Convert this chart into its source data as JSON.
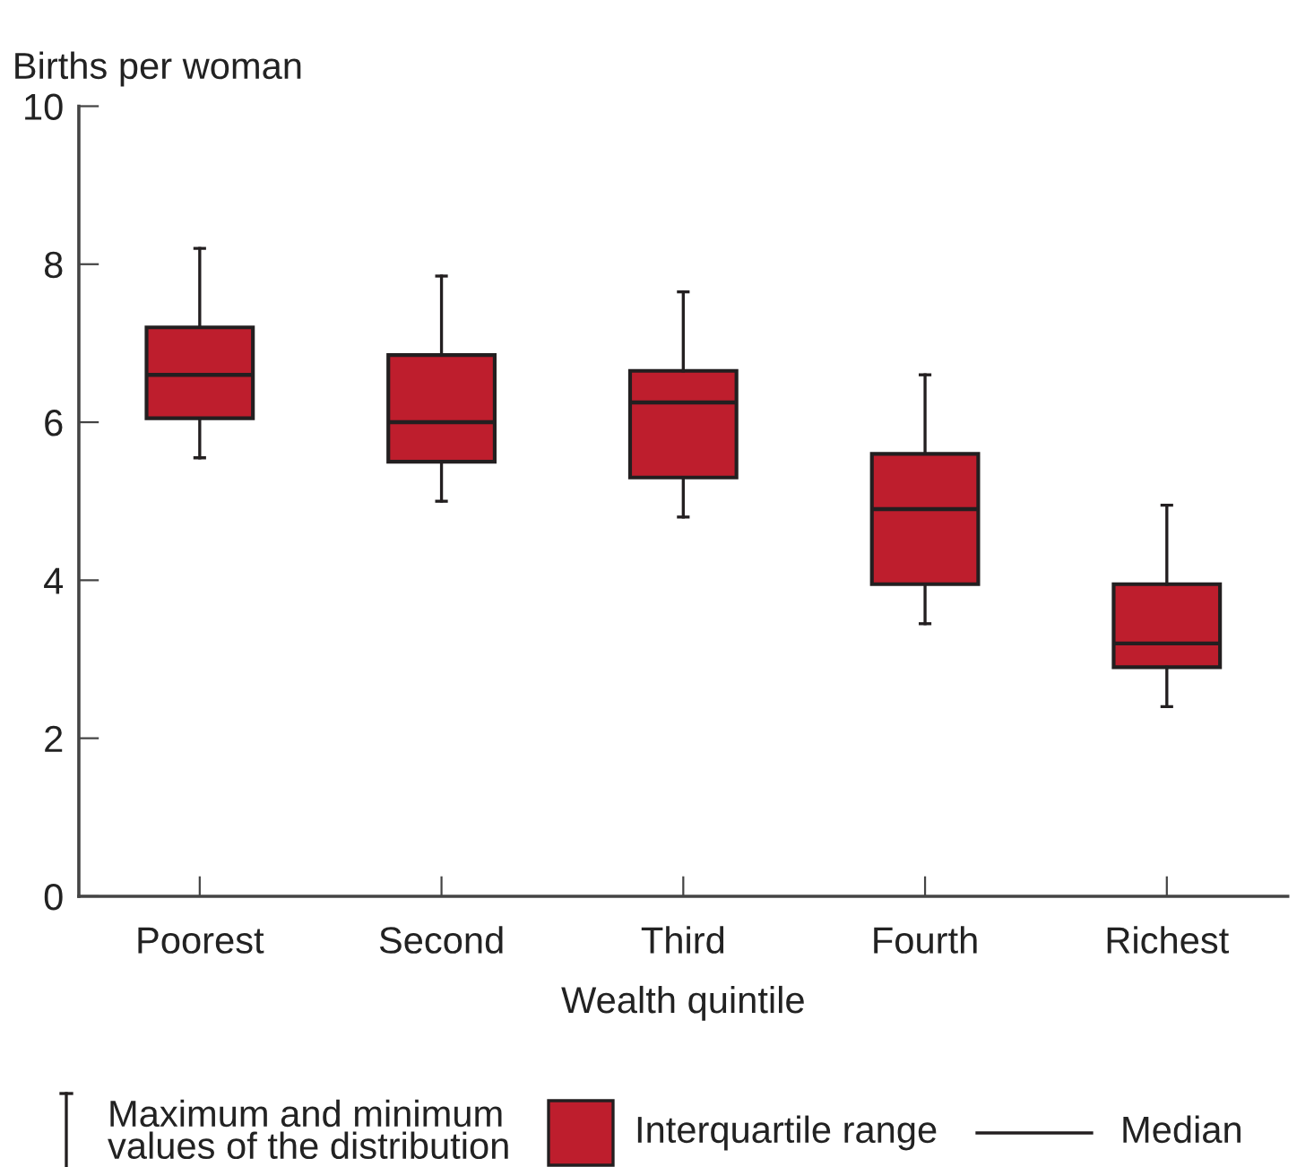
{
  "chart_data": {
    "type": "box",
    "xlabel": "Wealth quintile",
    "ylabel": "Births per woman",
    "categories": [
      "Poorest",
      "Second",
      "Third",
      "Fourth",
      "Richest"
    ],
    "series": [
      {
        "color": "#be1e2d",
        "boxes": [
          {
            "low": 5.55,
            "q1": 6.05,
            "median": 6.6,
            "q3": 7.2,
            "high": 8.2
          },
          {
            "low": 5.0,
            "q1": 5.5,
            "median": 6.0,
            "q3": 6.85,
            "high": 7.85
          },
          {
            "low": 4.8,
            "q1": 5.3,
            "median": 6.25,
            "q3": 6.65,
            "high": 7.65
          },
          {
            "low": 3.45,
            "q1": 3.95,
            "median": 4.9,
            "q3": 5.6,
            "high": 6.6
          },
          {
            "low": 2.4,
            "q1": 2.9,
            "median": 3.2,
            "q3": 3.95,
            "high": 4.95
          }
        ]
      }
    ],
    "ylim": [
      0,
      10
    ],
    "yticks": [
      0,
      2,
      4,
      6,
      8,
      10
    ],
    "grid": false,
    "annotations": [
      "Maximum and minimum\nvalues of the distribution",
      "Interquartile range",
      "Median"
    ]
  }
}
